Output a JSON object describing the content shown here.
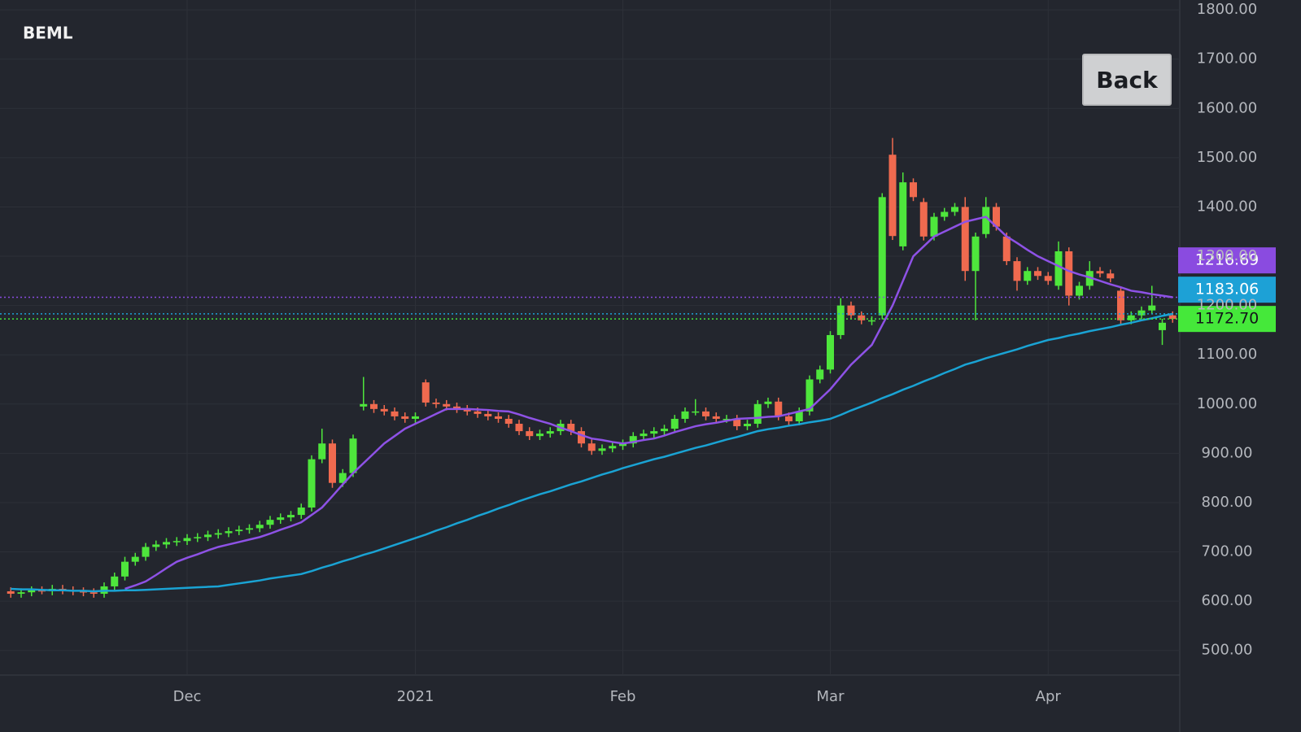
{
  "button": "Back",
  "chart_data": {
    "type": "candlestick",
    "title": "BEML",
    "categories": [
      null,
      null,
      null,
      null,
      null,
      null,
      null,
      null,
      null,
      null,
      null,
      null,
      null,
      null,
      null,
      null,
      null,
      "Dec",
      null,
      null,
      null,
      null,
      null,
      null,
      null,
      null,
      null,
      null,
      null,
      null,
      null,
      null,
      null,
      null,
      null,
      null,
      null,
      null,
      null,
      "2021",
      null,
      null,
      null,
      null,
      null,
      null,
      null,
      null,
      null,
      null,
      null,
      null,
      null,
      null,
      null,
      null,
      null,
      null,
      null,
      "Feb",
      null,
      null,
      null,
      null,
      null,
      null,
      null,
      null,
      null,
      null,
      null,
      null,
      null,
      null,
      null,
      null,
      null,
      null,
      null,
      "Mar",
      null,
      null,
      null,
      null,
      null,
      null,
      null,
      null,
      null,
      null,
      null,
      null,
      null,
      null,
      null,
      null,
      null,
      null,
      null,
      null,
      "Apr",
      null,
      null,
      null,
      null,
      null,
      null,
      null,
      null,
      null,
      null,
      null,
      null
    ],
    "open": [
      620,
      615,
      618,
      622,
      620,
      625,
      622,
      620,
      618,
      615,
      630,
      650,
      680,
      690,
      710,
      715,
      720,
      722,
      728,
      730,
      735,
      738,
      742,
      745,
      748,
      755,
      765,
      770,
      775,
      790,
      888,
      920,
      840,
      860,
      995,
      1000,
      990,
      985,
      975,
      970,
      1044,
      1003,
      1000,
      995,
      990,
      985,
      980,
      975,
      970,
      960,
      945,
      935,
      940,
      945,
      960,
      945,
      920,
      905,
      910,
      915,
      920,
      935,
      940,
      945,
      950,
      970,
      985,
      985,
      975,
      970,
      970,
      955,
      960,
      1000,
      1005,
      975,
      965,
      985,
      1050,
      1070,
      1140,
      1200,
      1180,
      1170,
      1180,
      1506,
      1320,
      1450,
      1410,
      1340,
      1380,
      1390,
      1400,
      1270,
      1345,
      1400,
      1340,
      1290,
      1250,
      1270,
      1260,
      1240,
      1310,
      1220,
      1240,
      1270,
      1265,
      1230,
      1170,
      1180,
      1190,
      1150,
      1180
    ],
    "high": [
      628,
      626,
      630,
      630,
      633,
      633,
      630,
      628,
      626,
      638,
      658,
      690,
      698,
      718,
      723,
      728,
      730,
      736,
      738,
      743,
      746,
      750,
      753,
      756,
      763,
      773,
      778,
      783,
      798,
      896,
      950,
      928,
      868,
      938,
      1055,
      1008,
      998,
      993,
      983,
      983,
      1050,
      1011,
      1008,
      1003,
      998,
      993,
      988,
      983,
      978,
      968,
      953,
      948,
      953,
      968,
      968,
      953,
      928,
      918,
      923,
      928,
      943,
      948,
      953,
      958,
      978,
      993,
      1010,
      993,
      983,
      978,
      978,
      968,
      1008,
      1013,
      1013,
      983,
      993,
      1058,
      1078,
      1148,
      1215,
      1208,
      1188,
      1178,
      1428,
      1540,
      1470,
      1458,
      1418,
      1388,
      1398,
      1408,
      1420,
      1348,
      1420,
      1408,
      1348,
      1298,
      1278,
      1278,
      1268,
      1330,
      1318,
      1248,
      1290,
      1278,
      1273,
      1238,
      1188,
      1198,
      1240,
      1173,
      1188
    ],
    "low": [
      607,
      607,
      610,
      614,
      612,
      614,
      612,
      610,
      607,
      607,
      622,
      642,
      672,
      682,
      702,
      707,
      712,
      714,
      720,
      722,
      727,
      730,
      734,
      737,
      740,
      747,
      757,
      762,
      767,
      782,
      880,
      830,
      832,
      852,
      987,
      982,
      977,
      967,
      962,
      962,
      995,
      992,
      987,
      982,
      977,
      972,
      967,
      962,
      952,
      937,
      927,
      927,
      932,
      937,
      937,
      912,
      897,
      897,
      902,
      907,
      912,
      927,
      932,
      937,
      942,
      962,
      977,
      967,
      962,
      962,
      947,
      947,
      952,
      992,
      967,
      957,
      957,
      977,
      1042,
      1062,
      1132,
      1172,
      1162,
      1160,
      1172,
      1333,
      1312,
      1412,
      1332,
      1332,
      1372,
      1382,
      1250,
      1170,
      1337,
      1352,
      1282,
      1230,
      1242,
      1252,
      1242,
      1232,
      1200,
      1212,
      1232,
      1257,
      1247,
      1162,
      1162,
      1172,
      1182,
      1120,
      1165
    ],
    "close": [
      615,
      618,
      622,
      620,
      625,
      622,
      620,
      618,
      615,
      630,
      650,
      680,
      690,
      710,
      715,
      720,
      722,
      728,
      730,
      735,
      738,
      742,
      745,
      748,
      755,
      765,
      770,
      775,
      790,
      888,
      920,
      840,
      860,
      930,
      1000,
      990,
      985,
      975,
      970,
      975,
      1003,
      1000,
      995,
      990,
      985,
      980,
      975,
      970,
      960,
      945,
      935,
      940,
      945,
      960,
      945,
      920,
      905,
      910,
      915,
      920,
      935,
      940,
      945,
      950,
      970,
      985,
      985,
      975,
      970,
      970,
      955,
      960,
      1000,
      1005,
      975,
      965,
      985,
      1050,
      1070,
      1140,
      1200,
      1180,
      1170,
      1170,
      1420,
      1341,
      1450,
      1420,
      1340,
      1380,
      1390,
      1400,
      1270,
      1340,
      1400,
      1360,
      1290,
      1250,
      1270,
      1260,
      1250,
      1310,
      1220,
      1240,
      1270,
      1265,
      1255,
      1170,
      1180,
      1190,
      1200,
      1165,
      1172.7
    ],
    "up_color": "#4ee63c",
    "down_color": "#f06a4f",
    "lines": [
      {
        "color": "#8e52e6",
        "values": [
          null,
          null,
          null,
          null,
          null,
          null,
          null,
          null,
          null,
          null,
          null,
          625,
          632,
          640,
          653,
          667,
          680,
          688,
          695,
          703,
          710,
          715,
          720,
          725,
          730,
          737,
          745,
          752,
          760,
          775,
          790,
          813,
          837,
          860,
          880,
          900,
          920,
          935,
          950,
          960,
          970,
          980,
          990,
          990,
          990,
          989,
          988,
          986,
          985,
          979,
          972,
          966,
          960,
          952,
          945,
          937,
          930,
          927,
          923,
          920,
          923,
          927,
          930,
          936,
          943,
          949,
          955,
          959,
          962,
          966,
          970,
          971,
          972,
          974,
          975,
          980,
          985,
          990,
          1010,
          1030,
          1055,
          1080,
          1100,
          1120,
          1160,
          1200,
          1250,
          1300,
          1320,
          1340,
          1350,
          1360,
          1370,
          1375,
          1380,
          1360,
          1340,
          1327,
          1313,
          1300,
          1290,
          1280,
          1270,
          1263,
          1257,
          1250,
          1243,
          1237,
          1230,
          1227,
          1223,
          1220,
          1216.69
        ]
      },
      {
        "color": "#1aa3d4",
        "values": [
          625,
          624,
          624,
          623,
          622,
          622,
          621,
          621,
          620,
          621,
          621,
          622,
          622,
          623,
          624,
          625,
          626,
          627,
          628,
          629,
          630,
          633,
          636,
          639,
          642,
          646,
          649,
          652,
          655,
          661,
          668,
          674,
          681,
          687,
          694,
          700,
          707,
          714,
          721,
          728,
          735,
          743,
          750,
          758,
          765,
          773,
          780,
          788,
          795,
          803,
          810,
          817,
          823,
          830,
          837,
          843,
          850,
          857,
          863,
          870,
          876,
          882,
          888,
          893,
          899,
          905,
          911,
          916,
          922,
          928,
          933,
          939,
          945,
          949,
          952,
          956,
          959,
          963,
          966,
          970,
          978,
          987,
          995,
          1003,
          1012,
          1020,
          1029,
          1037,
          1046,
          1054,
          1063,
          1071,
          1080,
          1086,
          1093,
          1099,
          1105,
          1111,
          1118,
          1124,
          1130,
          1134,
          1139,
          1143,
          1148,
          1152,
          1156,
          1161,
          1165,
          1170,
          1174,
          1179,
          1183.06
        ]
      }
    ],
    "price_tags": [
      {
        "value": 1216.69,
        "label": "1216.69",
        "color": "#8a4be0"
      },
      {
        "value": 1183.06,
        "label": "1183.06",
        "color": "#1da1d6"
      },
      {
        "value": 1172.7,
        "label": "1172.70",
        "color": "#45e83a"
      }
    ],
    "ylim": [
      450,
      1820
    ],
    "yticks": [
      {
        "value": 500,
        "label": "500.00"
      },
      {
        "value": 600,
        "label": "600.00"
      },
      {
        "value": 700,
        "label": "700.00"
      },
      {
        "value": 800,
        "label": "800.00"
      },
      {
        "value": 900,
        "label": "900.00"
      },
      {
        "value": 1000,
        "label": "1000.00"
      },
      {
        "value": 1100,
        "label": "1100.00"
      },
      {
        "value": 1200,
        "label": "1200.00"
      },
      {
        "value": 1300,
        "label": "1300.00"
      },
      {
        "value": 1400,
        "label": "1400.00"
      },
      {
        "value": 1500,
        "label": "1500.00"
      },
      {
        "value": 1600,
        "label": "1600.00"
      },
      {
        "value": 1700,
        "label": "1700.00"
      },
      {
        "value": 1800,
        "label": "1800.00"
      }
    ],
    "grid": true
  }
}
